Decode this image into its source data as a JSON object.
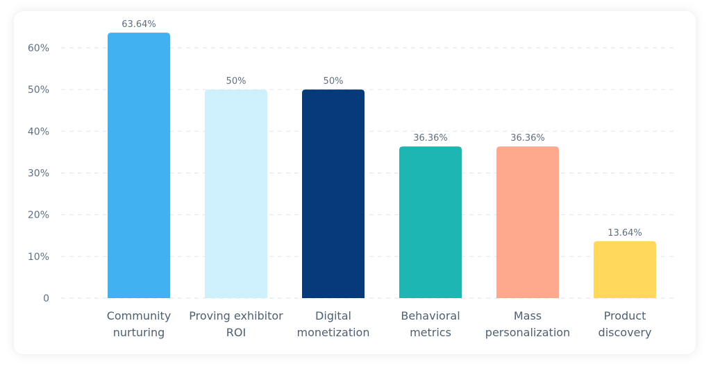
{
  "chart_data": {
    "type": "bar",
    "title": "",
    "xlabel": "",
    "ylabel": "",
    "categories": [
      [
        "Community",
        "nurturing"
      ],
      [
        "Proving exhibitor",
        "ROI"
      ],
      [
        "Digital",
        "monetization"
      ],
      [
        "Behavioral",
        "metrics"
      ],
      [
        "Mass",
        "personalization"
      ],
      [
        "Product",
        "discovery"
      ]
    ],
    "values": [
      63.64,
      50,
      50,
      36.36,
      36.36,
      13.64
    ],
    "value_labels": [
      "63.64%",
      "50%",
      "50%",
      "36.36%",
      "36.36%",
      "13.64%"
    ],
    "colors": [
      "#41b1f2",
      "#cdf0fc",
      "#063a78",
      "#1db6b3",
      "#fea88e",
      "#ffd75a"
    ],
    "ylim": [
      0,
      60
    ],
    "yticks": [
      {
        "value": 0,
        "label": "0"
      },
      {
        "value": 10,
        "label": "10%"
      },
      {
        "value": 20,
        "label": "20%"
      },
      {
        "value": 30,
        "label": "30%"
      },
      {
        "value": 40,
        "label": "40%"
      },
      {
        "value": 50,
        "label": "50%"
      },
      {
        "value": 60,
        "label": "60%"
      }
    ],
    "grid": true,
    "grid_style": "dashed"
  }
}
